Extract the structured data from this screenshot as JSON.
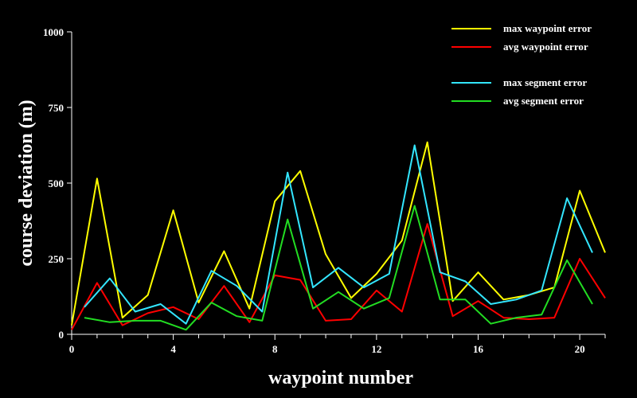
{
  "chart_data": {
    "type": "line",
    "xlabel": "waypoint number",
    "ylabel": "course deviation (m)",
    "xlim": [
      0,
      21
    ],
    "ylim": [
      0,
      1000
    ],
    "xticks": [
      0,
      4,
      8,
      12,
      16,
      20
    ],
    "yticks": [
      0,
      250,
      500,
      750,
      1000
    ],
    "legend_position": "top-right",
    "grid": false,
    "series": [
      {
        "name": "max waypoint error",
        "color": "#ffff00",
        "x": [
          0,
          1,
          2,
          3,
          4,
          5,
          6,
          7,
          8,
          9,
          10,
          11,
          12,
          13,
          14,
          15,
          16,
          17,
          18,
          19,
          20,
          21
        ],
        "y": [
          30,
          515,
          55,
          130,
          410,
          105,
          275,
          85,
          440,
          540,
          265,
          120,
          200,
          310,
          635,
          110,
          205,
          115,
          130,
          155,
          475,
          270
        ]
      },
      {
        "name": "avg waypoint error",
        "color": "#ff0000",
        "x": [
          0,
          1,
          2,
          3,
          4,
          5,
          6,
          7,
          8,
          9,
          10,
          11,
          12,
          13,
          14,
          15,
          16,
          17,
          18,
          19,
          20,
          21
        ],
        "y": [
          15,
          170,
          30,
          70,
          90,
          50,
          160,
          40,
          195,
          180,
          45,
          50,
          145,
          75,
          365,
          60,
          110,
          55,
          50,
          55,
          250,
          120
        ]
      },
      {
        "name": "max segment error",
        "color": "#33e6ff",
        "x": [
          0.5,
          1.5,
          2.5,
          3.5,
          4.5,
          5.5,
          6.5,
          7.5,
          8.5,
          9.5,
          10.5,
          11.5,
          12.5,
          13.5,
          14.5,
          15.5,
          16.5,
          17.5,
          18.5,
          19.5,
          20.5
        ],
        "y": [
          90,
          185,
          75,
          100,
          35,
          210,
          160,
          75,
          535,
          155,
          220,
          155,
          200,
          625,
          205,
          175,
          100,
          115,
          145,
          450,
          270
        ]
      },
      {
        "name": "avg segment error",
        "color": "#22dd22",
        "x": [
          0.5,
          1.5,
          2.5,
          3.5,
          4.5,
          5.5,
          6.5,
          7.5,
          8.5,
          9.5,
          10.5,
          11.5,
          12.5,
          13.5,
          14.5,
          15.5,
          16.5,
          17.5,
          18.5,
          19.5,
          20.5
        ],
        "y": [
          55,
          40,
          45,
          45,
          15,
          105,
          60,
          45,
          380,
          85,
          140,
          85,
          120,
          425,
          115,
          115,
          35,
          55,
          65,
          245,
          100
        ]
      }
    ]
  }
}
